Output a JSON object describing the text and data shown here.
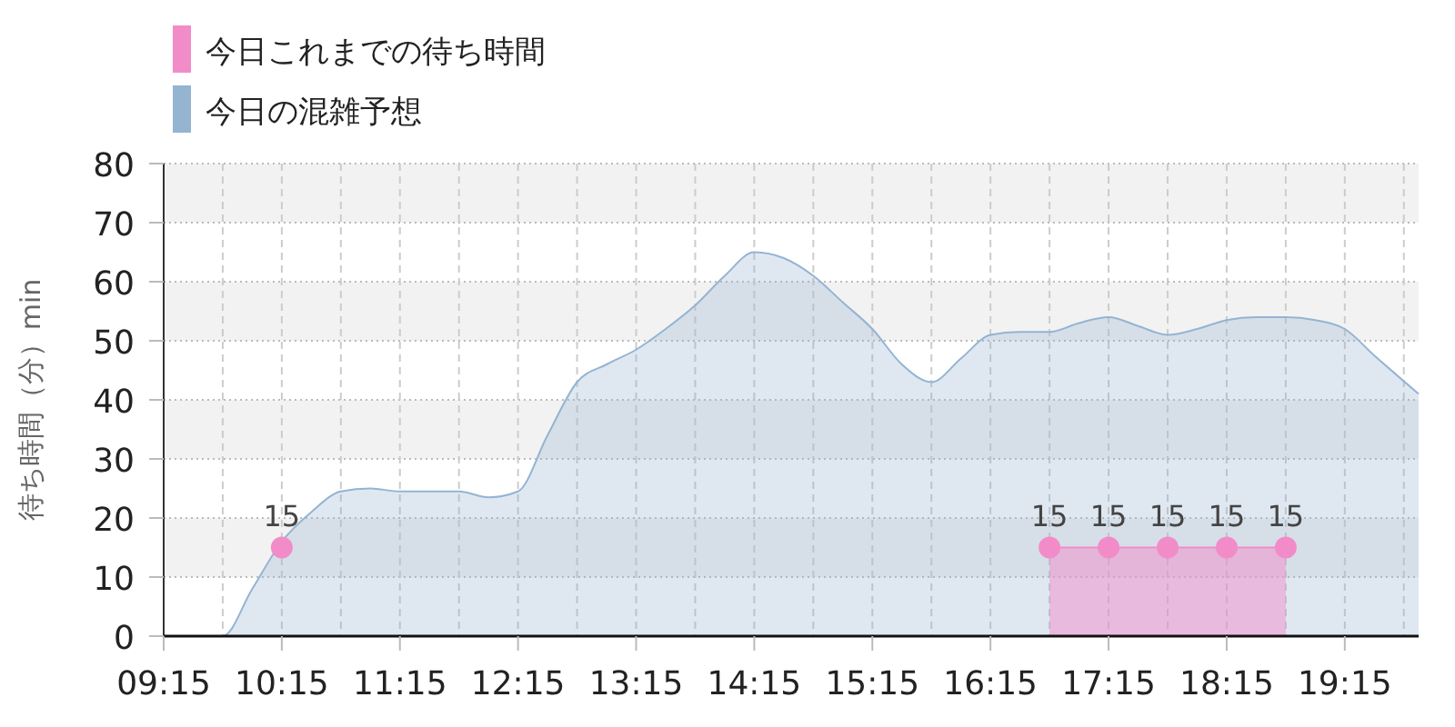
{
  "chart_data": {
    "type": "area",
    "ylabel": "待ち時間（分）min",
    "xlim": [
      9.25,
      19.875
    ],
    "ylim": [
      0,
      80
    ],
    "yticks": [
      0,
      10,
      20,
      30,
      40,
      50,
      60,
      70,
      80
    ],
    "xticks": [
      {
        "value": 9.25,
        "label": "09:15"
      },
      {
        "value": 9.75,
        "label": null
      },
      {
        "value": 10.25,
        "label": "10:15"
      },
      {
        "value": 10.75,
        "label": null
      },
      {
        "value": 11.25,
        "label": "11:15"
      },
      {
        "value": 11.75,
        "label": null
      },
      {
        "value": 12.25,
        "label": "12:15"
      },
      {
        "value": 12.75,
        "label": null
      },
      {
        "value": 13.25,
        "label": "13:15"
      },
      {
        "value": 13.75,
        "label": null
      },
      {
        "value": 14.25,
        "label": "14:15"
      },
      {
        "value": 14.75,
        "label": null
      },
      {
        "value": 15.25,
        "label": "15:15"
      },
      {
        "value": 15.75,
        "label": null
      },
      {
        "value": 16.25,
        "label": "16:15"
      },
      {
        "value": 16.75,
        "label": null
      },
      {
        "value": 17.25,
        "label": "17:15"
      },
      {
        "value": 17.75,
        "label": null
      },
      {
        "value": 18.25,
        "label": "18:15"
      },
      {
        "value": 18.75,
        "label": null
      },
      {
        "value": 19.25,
        "label": "19:15"
      },
      {
        "value": 19.75,
        "label": null
      }
    ],
    "grid": true,
    "legend": "top left",
    "series": [
      {
        "name": "今日これまでの待ち時間",
        "color": "#f28cc9",
        "type": "area",
        "marker": "circle",
        "x": [
          16.75,
          17.25,
          17.75,
          18.25,
          18.75
        ],
        "values": [
          15,
          15,
          15,
          15,
          15
        ],
        "value_labels": [
          "15",
          "15",
          "15",
          "15",
          "15"
        ]
      },
      {
        "color": "#f28cc9",
        "type": "scatter",
        "marker": "circle",
        "x": [
          10.25
        ],
        "values": [
          15
        ],
        "value_labels": [
          "15"
        ]
      },
      {
        "name": "今日の混雑予想",
        "color": "#94b4d2",
        "marker": "none",
        "x": [
          9.25,
          9.5,
          9.75,
          10.0,
          10.25,
          10.5,
          10.75,
          11.0,
          11.25,
          11.5,
          11.75,
          12.0,
          12.25,
          12.5,
          12.75,
          13.0,
          13.25,
          13.5,
          13.75,
          14.0,
          14.25,
          14.5,
          14.75,
          15.0,
          15.25,
          15.5,
          15.75,
          16.0,
          16.25,
          16.5,
          16.75,
          17.0,
          17.25,
          17.5,
          17.75,
          18.0,
          18.25,
          18.5,
          18.75,
          19.0,
          19.25,
          19.5,
          19.875
        ],
        "values": [
          0,
          0,
          0,
          8,
          16,
          21,
          24.5,
          25,
          24.5,
          24.5,
          24.5,
          23.5,
          24.5,
          34,
          43,
          46,
          48.5,
          52,
          56,
          61,
          65,
          64,
          61,
          56.5,
          52,
          46,
          43,
          47,
          51,
          51.5,
          51.5,
          53,
          54,
          52.5,
          51,
          52,
          53.5,
          54,
          54,
          53.5,
          52,
          47.5,
          41
        ]
      }
    ]
  }
}
